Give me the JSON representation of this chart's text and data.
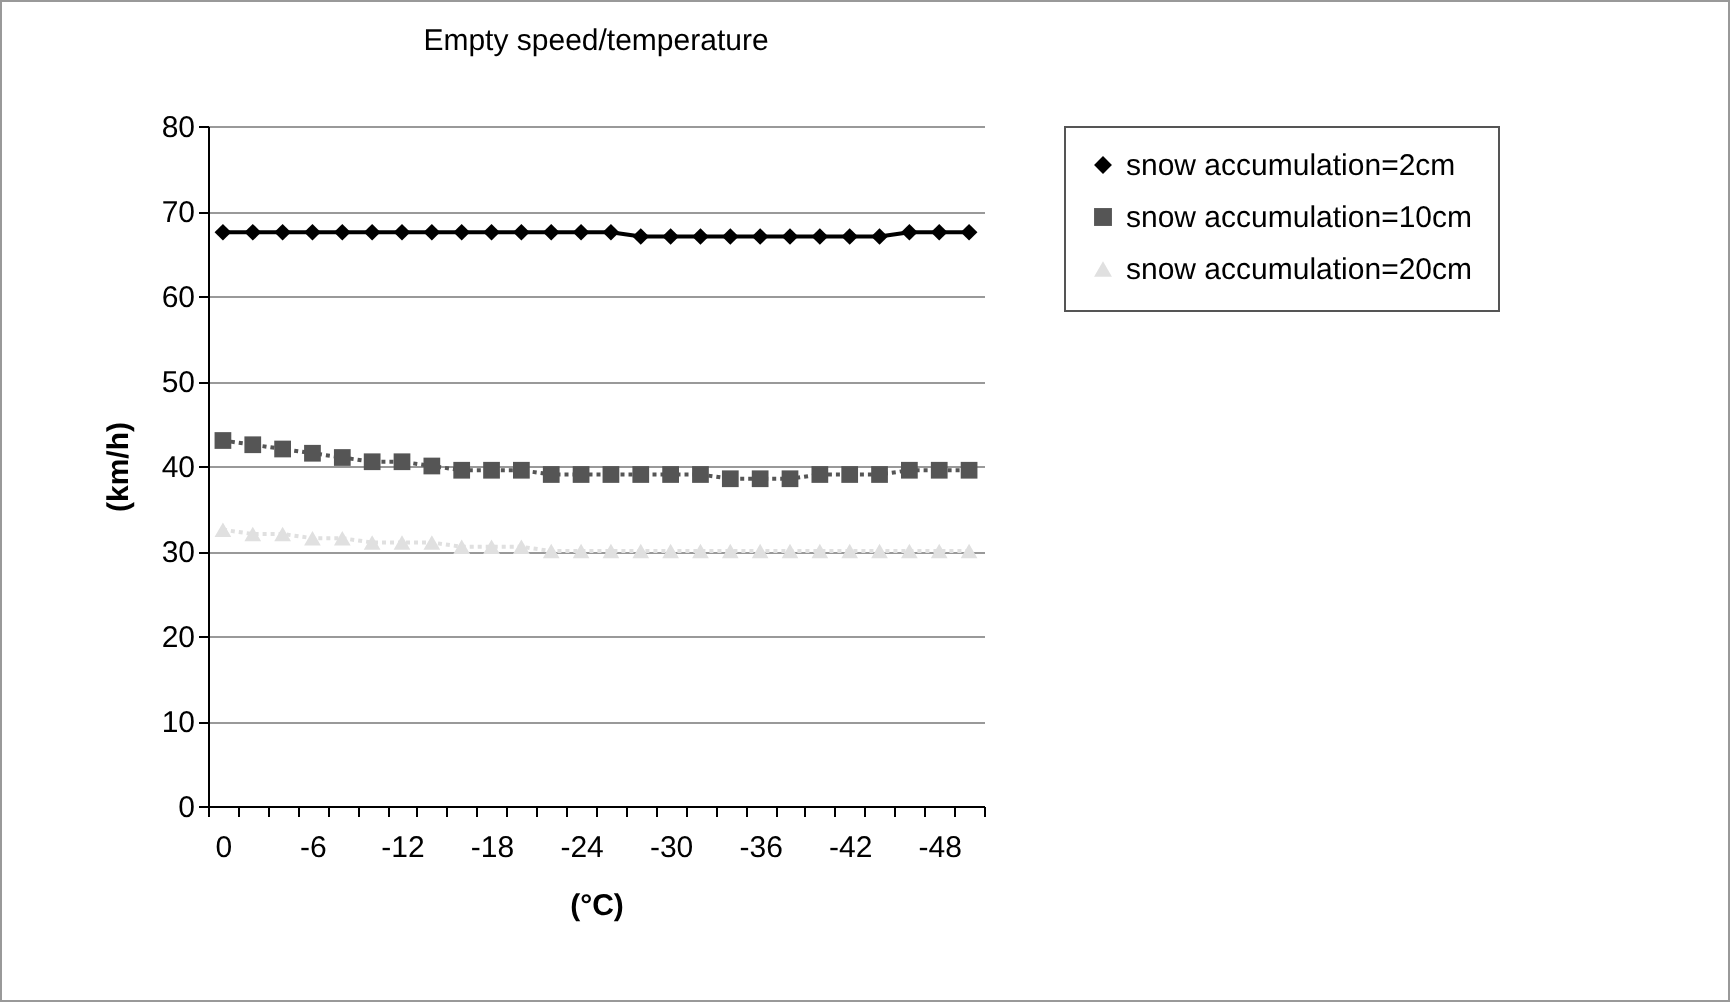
{
  "chart_data": {
    "type": "line",
    "title": "Empty speed/temperature",
    "xlabel": "(°C)",
    "ylabel": "(km/h)",
    "categories": [
      "0",
      null,
      null,
      "-6",
      null,
      null,
      "-12",
      null,
      null,
      "-18",
      null,
      null,
      "-24",
      null,
      null,
      "-30",
      null,
      null,
      "-36",
      null,
      null,
      "-42",
      null,
      null,
      "-48",
      null
    ],
    "series": [
      {
        "name": "snow accumulation=2cm",
        "color": "#000000",
        "marker": "diamond",
        "line_style": "solid",
        "values": [
          67.5,
          67.5,
          67.5,
          67.5,
          67.5,
          67.5,
          67.5,
          67.5,
          67.5,
          67.5,
          67.5,
          67.5,
          67.5,
          67.5,
          67,
          67,
          67,
          67,
          67,
          67,
          67,
          67,
          67,
          67.5,
          67.5,
          67.5
        ]
      },
      {
        "name": "snow accumulation=10cm",
        "color": "#555555",
        "marker": "square",
        "line_style": "dotted",
        "values": [
          43,
          42.5,
          42,
          41.5,
          41,
          40.5,
          40.5,
          40,
          39.5,
          39.5,
          39.5,
          39,
          39,
          39,
          39,
          39,
          39,
          38.5,
          38.5,
          38.5,
          39,
          39,
          39,
          39.5,
          39.5,
          39.5
        ]
      },
      {
        "name": "snow accumulation=20cm",
        "color": "#e0e0e0",
        "marker": "triangle",
        "line_style": "dotted",
        "values": [
          32.5,
          32,
          32,
          31.5,
          31.5,
          31,
          31,
          31,
          30.5,
          30.5,
          30.5,
          30,
          30,
          30,
          30,
          30,
          30,
          30,
          30,
          30,
          30,
          30,
          30,
          30,
          30,
          30
        ]
      }
    ],
    "ylim": [
      0,
      80
    ],
    "yticks": [
      0,
      10,
      20,
      30,
      40,
      50,
      60,
      70,
      80
    ],
    "grid": "y",
    "legend": "right"
  }
}
